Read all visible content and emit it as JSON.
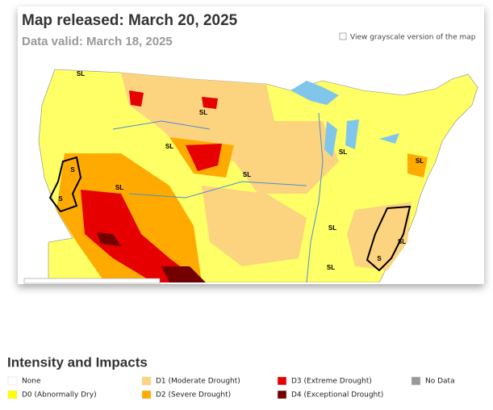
{
  "header": {
    "title": "Map released: March 20, 2025",
    "subtitle": "Data valid: March 18, 2025",
    "grayscale_link": "View grayscale version of the map"
  },
  "map": {
    "labels": [
      "SL",
      "SL",
      "SL",
      "S",
      "S",
      "SL",
      "SL",
      "SL",
      "SL",
      "SL",
      "SL",
      "SL",
      "S"
    ]
  },
  "legend": {
    "title": "Intensity and Impacts",
    "items": [
      {
        "label": "None",
        "color": "#ffffff"
      },
      {
        "label": "D0 (Abnormally Dry)",
        "color": "#ffff00"
      },
      {
        "label": "D1 (Moderate Drought)",
        "color": "#fcd37f"
      },
      {
        "label": "D2 (Severe Drought)",
        "color": "#ffaa00"
      },
      {
        "label": "D3 (Extreme Drought)",
        "color": "#e60000"
      },
      {
        "label": "D4 (Exceptional Drought)",
        "color": "#730000"
      },
      {
        "label": "No Data",
        "color": "#999999"
      }
    ]
  }
}
